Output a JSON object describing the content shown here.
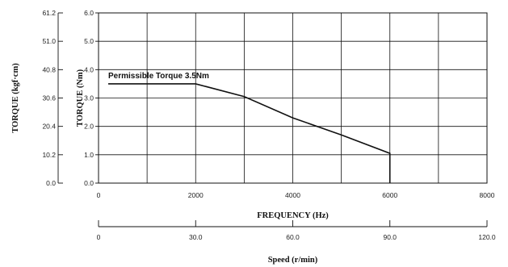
{
  "chart_data": {
    "type": "line",
    "x": [
      200,
      2000,
      3000,
      4000,
      5000,
      6000,
      6000
    ],
    "y": [
      3.5,
      3.5,
      3.05,
      2.3,
      1.7,
      1.05,
      0
    ],
    "xlim": [
      0,
      8000
    ],
    "ylim": [
      0,
      6
    ],
    "x_ticks": [
      "0",
      "2000",
      "4000",
      "6000",
      "8000"
    ],
    "y_ticks_nm": [
      "0.0",
      "1.0",
      "2.0",
      "3.0",
      "4.0",
      "5.0",
      "6.0"
    ],
    "y_ticks_kgf": [
      "0.0",
      "10.2",
      "20.4",
      "30.6",
      "40.8",
      "51.0",
      "61.2"
    ],
    "speed_ticks": [
      "0",
      "30.0",
      "60.0",
      "90.0",
      "120.0"
    ],
    "xlabel": "FREQUENCY (Hz)",
    "ylabel": "TORQUE (Nm)",
    "ylabel_secondary": "TORQUE (kgf·cm)",
    "speed_label": "Speed (r/min)",
    "annotation": "Permissible Torque 3.5Nm",
    "grid": true
  }
}
